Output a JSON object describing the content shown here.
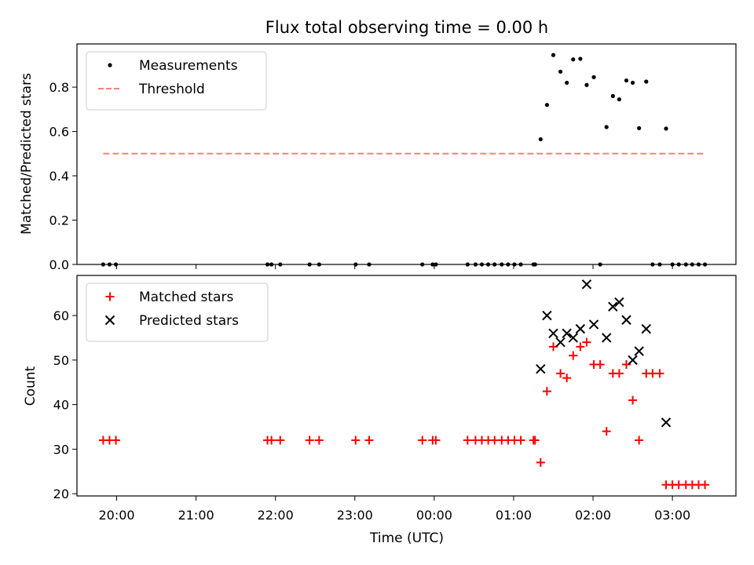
{
  "chart_data": {
    "title": "Flux total observing time = 0.00 h",
    "xlabel": "Time (UTC)",
    "x_unit": "hours UTC; values past midnight written as 24+",
    "x_range": [
      19.5,
      27.8
    ],
    "x_ticks": [
      {
        "value": 20,
        "label": "20:00"
      },
      {
        "value": 21,
        "label": "21:00"
      },
      {
        "value": 22,
        "label": "22:00"
      },
      {
        "value": 23,
        "label": "23:00"
      },
      {
        "value": 24,
        "label": "00:00"
      },
      {
        "value": 25,
        "label": "01:00"
      },
      {
        "value": 26,
        "label": "02:00"
      },
      {
        "value": 27,
        "label": "03:00"
      }
    ],
    "panels": [
      {
        "type": "scatter",
        "ylabel": "Matched/Predicted stars",
        "ylim": [
          0,
          0.995
        ],
        "y_ticks": [
          {
            "value": 0,
            "label": "0.0"
          },
          {
            "value": 0.2,
            "label": "0.2"
          },
          {
            "value": 0.4,
            "label": "0.4"
          },
          {
            "value": 0.6,
            "label": "0.6"
          },
          {
            "value": 0.8,
            "label": "0.8"
          }
        ],
        "legend_position": "top-left",
        "series": [
          {
            "name": "Measurements",
            "kind": "dot",
            "color": "#000000",
            "x": [
              19.83,
              19.91,
              19.99,
              21.9,
              21.95,
              22.06,
              22.43,
              22.55,
              23.01,
              23.18,
              23.85,
              23.98,
              24.02,
              24.42,
              24.52,
              24.6,
              24.68,
              24.76,
              24.85,
              24.93,
              25.01,
              25.09,
              25.25,
              25.27,
              25.34,
              25.42,
              25.5,
              25.59,
              25.67,
              25.75,
              25.84,
              25.92,
              26.01,
              26.09,
              26.17,
              26.25,
              26.33,
              26.42,
              26.5,
              26.58,
              26.67,
              26.75,
              26.84,
              26.92,
              27.0,
              27.08,
              27.17,
              27.25,
              27.33,
              27.41
            ],
            "y": [
              0,
              0,
              0,
              0,
              0,
              0,
              0,
              0,
              0,
              0,
              0,
              0,
              0,
              0,
              0,
              0,
              0,
              0,
              0,
              0,
              0,
              0,
              0,
              0,
              0.565,
              0.72,
              0.945,
              0.87,
              0.82,
              0.925,
              0.928,
              0.81,
              0.845,
              0,
              0.62,
              0.76,
              0.745,
              0.83,
              0.82,
              0.615,
              0.825,
              0,
              0,
              0.613,
              0,
              0,
              0,
              0,
              0,
              0
            ]
          },
          {
            "name": "Threshold",
            "kind": "dashed-line",
            "color": "#ff7f7f",
            "x": [
              19.83,
              27.41
            ],
            "y": [
              0.5,
              0.5
            ]
          }
        ]
      },
      {
        "type": "scatter",
        "ylabel": "Count",
        "ylim": [
          19.5,
          69
        ],
        "y_ticks": [
          {
            "value": 20,
            "label": "20"
          },
          {
            "value": 30,
            "label": "30"
          },
          {
            "value": 40,
            "label": "40"
          },
          {
            "value": 50,
            "label": "50"
          },
          {
            "value": 60,
            "label": "60"
          }
        ],
        "legend_position": "top-left",
        "series": [
          {
            "name": "Matched stars",
            "kind": "plus",
            "color": "#ff0000",
            "x": [
              19.83,
              19.91,
              19.99,
              21.9,
              21.95,
              22.06,
              22.43,
              22.55,
              23.01,
              23.18,
              23.85,
              23.98,
              24.02,
              24.42,
              24.52,
              24.6,
              24.68,
              24.76,
              24.85,
              24.93,
              25.01,
              25.09,
              25.25,
              25.27,
              25.34,
              25.42,
              25.5,
              25.59,
              25.67,
              25.75,
              25.84,
              25.92,
              26.01,
              26.09,
              26.17,
              26.25,
              26.33,
              26.42,
              26.5,
              26.58,
              26.67,
              26.75,
              26.84,
              26.92,
              27.0,
              27.08,
              27.17,
              27.25,
              27.33,
              27.41
            ],
            "y": [
              32,
              32,
              32,
              32,
              32,
              32,
              32,
              32,
              32,
              32,
              32,
              32,
              32,
              32,
              32,
              32,
              32,
              32,
              32,
              32,
              32,
              32,
              32,
              32,
              27,
              43,
              53,
              47,
              46,
              51,
              53,
              54,
              49,
              49,
              34,
              47,
              47,
              49,
              41,
              32,
              47,
              47,
              47,
              22,
              22,
              22,
              22,
              22,
              22,
              22
            ]
          },
          {
            "name": "Predicted stars",
            "kind": "cross",
            "color": "#000000",
            "x": [
              25.34,
              25.42,
              25.5,
              25.59,
              25.67,
              25.75,
              25.84,
              25.92,
              26.01,
              26.17,
              26.25,
              26.33,
              26.42,
              26.5,
              26.58,
              26.67,
              26.92
            ],
            "y": [
              48,
              60,
              56,
              54,
              56,
              55,
              57,
              67,
              58,
              55,
              62,
              63,
              59,
              50,
              52,
              57,
              36
            ]
          }
        ]
      }
    ]
  }
}
